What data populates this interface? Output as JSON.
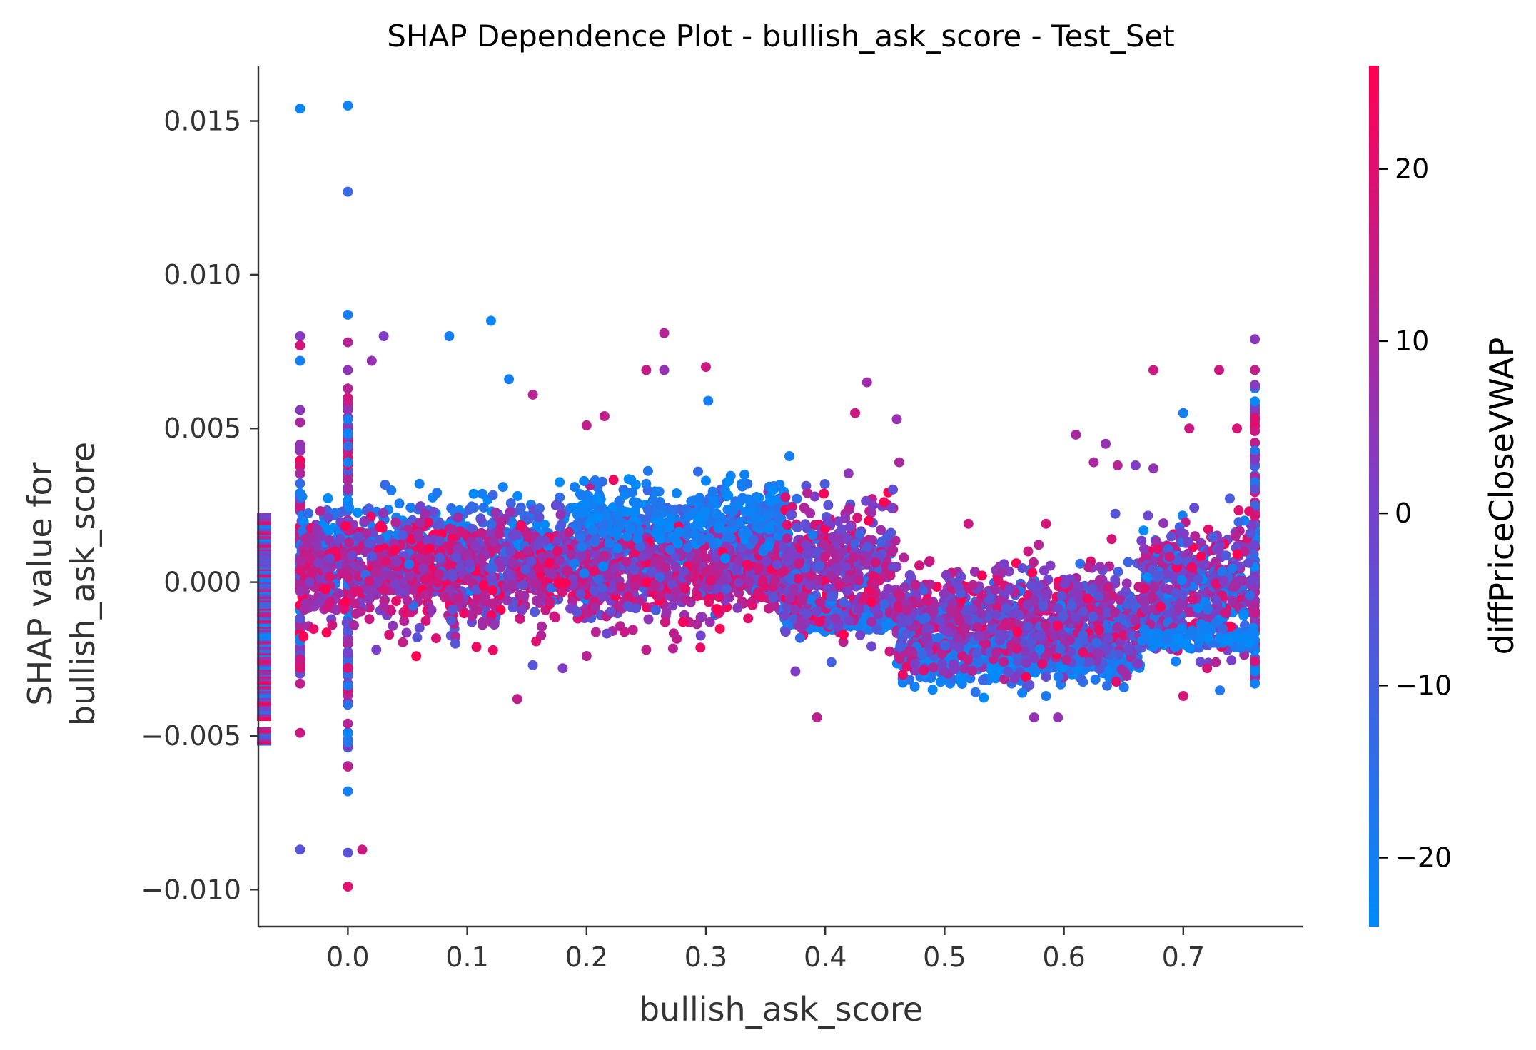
{
  "chart_data": {
    "type": "scatter",
    "title": "SHAP Dependence Plot - bullish_ask_score - Test_Set",
    "xlabel": "bullish_ask_score",
    "ylabel_lines": [
      "SHAP value for",
      "bullish_ask_score"
    ],
    "xlim": [
      -0.075,
      0.8
    ],
    "ylim": [
      -0.0112,
      0.0168
    ],
    "x_ticks": [
      0.0,
      0.1,
      0.2,
      0.3,
      0.4,
      0.5,
      0.6,
      0.7
    ],
    "x_tick_labels": [
      "0.0",
      "0.1",
      "0.2",
      "0.3",
      "0.4",
      "0.5",
      "0.6",
      "0.7"
    ],
    "y_ticks": [
      -0.01,
      -0.005,
      0.0,
      0.005,
      0.01,
      0.015
    ],
    "y_tick_labels": [
      "−0.010",
      "−0.005",
      "0.000",
      "0.005",
      "0.010",
      "0.015"
    ],
    "grid": false,
    "legend": "none",
    "colorbar": {
      "label": "diffPriceCloseVWAP",
      "min": -24,
      "max": 26,
      "ticks": [
        -20,
        -10,
        0,
        10,
        20
      ],
      "tick_labels": [
        "−20",
        "−10",
        "0",
        "10",
        "20"
      ],
      "color_low": "#008bfb",
      "color_high": "#ff0052"
    },
    "missing_value_strip": {
      "x": -0.075,
      "y_range": [
        -0.0052,
        0.0023
      ]
    },
    "series": [
      {
        "values_description_free": true,
        "points": [
          [
            -0.04,
            0.0154,
            -22
          ],
          [
            0.0,
            0.0155,
            -22
          ],
          [
            0.0,
            0.0127,
            -12
          ],
          [
            0.0,
            0.0087,
            -20
          ],
          [
            0.12,
            0.0085,
            -22
          ],
          [
            0.085,
            0.008,
            -20
          ],
          [
            -0.04,
            0.008,
            3
          ],
          [
            -0.04,
            0.0077,
            18
          ],
          [
            0.0,
            0.0078,
            12
          ],
          [
            0.03,
            0.008,
            2
          ],
          [
            0.02,
            0.0072,
            6
          ],
          [
            -0.04,
            0.0072,
            -20
          ],
          [
            0.0,
            0.0069,
            5
          ],
          [
            0.135,
            0.0066,
            -20
          ],
          [
            0.265,
            0.0081,
            12
          ],
          [
            0.25,
            0.0069,
            15
          ],
          [
            0.265,
            0.0069,
            6
          ],
          [
            0.3,
            0.007,
            16
          ],
          [
            0.302,
            0.0059,
            -20
          ],
          [
            0.155,
            0.0061,
            12
          ],
          [
            0.2,
            0.0051,
            14
          ],
          [
            0.215,
            0.0054,
            14
          ],
          [
            0.435,
            0.0065,
            8
          ],
          [
            0.425,
            0.0055,
            16
          ],
          [
            0.46,
            0.0053,
            6
          ],
          [
            0.462,
            0.0039,
            10
          ],
          [
            0.37,
            0.0041,
            -20
          ],
          [
            0.7,
            0.0055,
            -20
          ],
          [
            0.73,
            0.0069,
            16
          ],
          [
            0.675,
            0.0069,
            16
          ],
          [
            0.705,
            0.005,
            16
          ],
          [
            0.745,
            0.005,
            18
          ],
          [
            0.76,
            0.0079,
            4
          ],
          [
            0.76,
            0.0069,
            14
          ],
          [
            0.61,
            0.0048,
            10
          ],
          [
            0.635,
            0.0045,
            6
          ],
          [
            0.625,
            0.0039,
            10
          ],
          [
            0.66,
            0.0038,
            2
          ],
          [
            0.675,
            0.0037,
            6
          ],
          [
            0.645,
            0.0038,
            12
          ],
          [
            0.585,
            0.0019,
            18
          ],
          [
            0.52,
            0.0019,
            16
          ],
          [
            0.57,
            0.001,
            16
          ],
          [
            0.64,
            0.0014,
            18
          ],
          [
            0.0,
            -0.0046,
            12
          ],
          [
            0.0,
            -0.006,
            14
          ],
          [
            0.0,
            -0.0068,
            -20
          ],
          [
            -0.04,
            -0.0049,
            16
          ],
          [
            -0.04,
            -0.0087,
            -6
          ],
          [
            0.0,
            -0.0088,
            -6
          ],
          [
            0.012,
            -0.0087,
            16
          ],
          [
            0.0,
            -0.0099,
            20
          ],
          [
            0.142,
            -0.0038,
            14
          ],
          [
            0.2,
            -0.0024,
            12
          ],
          [
            0.155,
            -0.0027,
            -6
          ],
          [
            0.18,
            -0.0028,
            2
          ],
          [
            0.375,
            -0.0029,
            2
          ],
          [
            0.25,
            -0.0022,
            14
          ],
          [
            0.09,
            -0.002,
            -6
          ],
          [
            0.058,
            -0.0018,
            -6
          ],
          [
            0.018,
            -0.0012,
            16
          ],
          [
            0.575,
            -0.0044,
            6
          ],
          [
            0.595,
            -0.0044,
            6
          ],
          [
            0.585,
            -0.0037,
            -18
          ],
          [
            0.565,
            -0.0036,
            -20
          ],
          [
            0.49,
            -0.0035,
            -22
          ],
          [
            0.475,
            -0.0034,
            -20
          ],
          [
            0.7,
            -0.0037,
            18
          ],
          [
            0.72,
            -0.0028,
            18
          ],
          [
            0.76,
            -0.0033,
            -20
          ],
          [
            0.76,
            -0.0029,
            -22
          ],
          [
            -0.04,
            -0.0025,
            16
          ],
          [
            -0.04,
            -0.0033,
            14
          ],
          [
            -0.04,
            0.0052,
            10
          ],
          [
            -0.04,
            0.0056,
            4
          ],
          [
            0.0,
            0.0039,
            -20
          ],
          [
            0.0,
            0.0056,
            6
          ],
          [
            0.0,
            0.0063,
            12
          ],
          [
            0.0,
            0.0053,
            -20
          ],
          [
            -0.04,
            0.0029,
            -20
          ],
          [
            0.3,
            0.0033,
            -22
          ],
          [
            0.25,
            0.0032,
            -20
          ],
          [
            0.33,
            0.0032,
            -20
          ],
          [
            0.06,
            0.0032,
            -20
          ],
          [
            0.13,
            0.0031,
            -20
          ],
          [
            0.19,
            0.0031,
            -20
          ],
          [
            0.42,
            0.0024,
            12
          ],
          [
            0.44,
            0.0025,
            2
          ],
          [
            0.385,
            0.0029,
            12
          ]
        ]
      }
    ],
    "clusters": [
      {
        "x": [
          -0.04,
          0.37
        ],
        "y_mean": 0.0013,
        "y_sd": 0.0007,
        "n": 900,
        "c_mean": -16,
        "c_sd": 8
      },
      {
        "x": [
          -0.04,
          0.37
        ],
        "y_mean": 0.0003,
        "y_sd": 0.0008,
        "n": 1500,
        "c_mean": 10,
        "c_sd": 10
      },
      {
        "x": [
          0.19,
          0.37
        ],
        "y_mean": 0.0021,
        "y_sd": 0.0006,
        "n": 260,
        "c_mean": -20,
        "c_sd": 3
      },
      {
        "x": [
          0.365,
          0.46
        ],
        "y_mean": -0.0011,
        "y_sd": 0.0002,
        "n": 450,
        "c_mean": -20,
        "c_sd": 3
      },
      {
        "x": [
          0.365,
          0.46
        ],
        "y_mean": 0.0004,
        "y_sd": 0.001,
        "n": 500,
        "c_mean": 4,
        "c_sd": 12
      },
      {
        "x": [
          0.46,
          0.665
        ],
        "y_mean": -0.0024,
        "y_sd": 0.0004,
        "n": 600,
        "c_mean": -19,
        "c_sd": 4
      },
      {
        "x": [
          0.46,
          0.665
        ],
        "y_mean": -0.0012,
        "y_sd": 0.0008,
        "n": 900,
        "c_mean": 4,
        "c_sd": 11
      },
      {
        "x": [
          0.665,
          0.76
        ],
        "y_mean": -0.0002,
        "y_sd": 0.001,
        "n": 500,
        "c_mean": 2,
        "c_sd": 13
      },
      {
        "x": [
          0.665,
          0.76
        ],
        "y_mean": -0.0018,
        "y_sd": 0.0002,
        "n": 90,
        "c_mean": -20,
        "c_sd": 3
      }
    ],
    "vertical_stacks": [
      {
        "x": 0.0,
        "y_range": [
          -0.006,
          0.006
        ],
        "n": 120
      },
      {
        "x": -0.04,
        "y_range": [
          -0.003,
          0.0045
        ],
        "n": 90
      },
      {
        "x": 0.76,
        "y_range": [
          -0.0033,
          0.0065
        ],
        "n": 120
      }
    ]
  }
}
